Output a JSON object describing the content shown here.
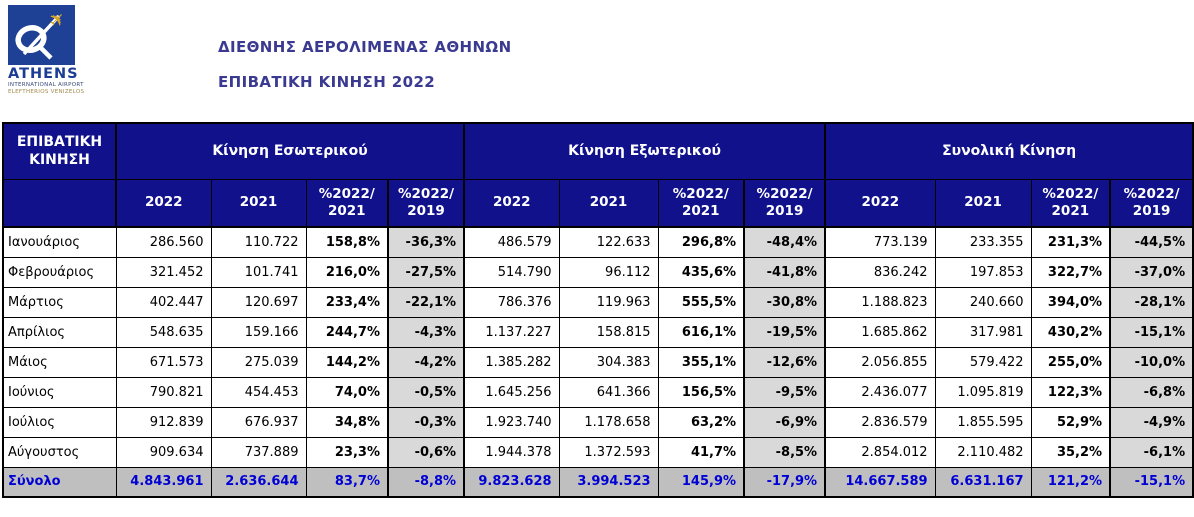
{
  "logo": {
    "name": "ATHENS",
    "sub1": "INTERNATIONAL AIRPORT",
    "sub2": "ELEFTHERIOS VENIZELOS",
    "square_color": "#1E4196",
    "plane_color": "#D8A62A"
  },
  "title": {
    "line1": "ΔΙΕΘΝΗΣ ΑΕΡΟΛΙΜΕΝΑΣ ΑΘΗΝΩΝ",
    "line2": "ΕΠΙΒΑΤΙΚΗ ΚΙΝΗΣΗ 2022"
  },
  "colors": {
    "header_navy": "#11118C",
    "title_indigo": "#3B3A91",
    "vs2019_column_gray": "#D9D9D9",
    "total_row_gray": "#BFBFBF",
    "total_row_text_blue": "#0000D4"
  },
  "table": {
    "corner": "ΕΠΙΒΑΤΙΚΗ ΚΙΝΗΣΗ",
    "groups": [
      "Κίνηση Εσωτερικού",
      "Κίνηση Εξωτερικού",
      "Συνολική Κίνηση"
    ],
    "subheaders": [
      {
        "line1": "2022",
        "line2": ""
      },
      {
        "line1": "2021",
        "line2": ""
      },
      {
        "line1": "%2022/",
        "line2": "2021"
      },
      {
        "line1": "%2022/",
        "line2": "2019"
      }
    ],
    "rows": [
      {
        "month": "Ιανουάριος",
        "domestic": [
          "286.560",
          "110.722",
          "158,8%",
          "-36,3%"
        ],
        "international": [
          "486.579",
          "122.633",
          "296,8%",
          "-48,4%"
        ],
        "total": [
          "773.139",
          "233.355",
          "231,3%",
          "-44,5%"
        ]
      },
      {
        "month": "Φεβρουάριος",
        "domestic": [
          "321.452",
          "101.741",
          "216,0%",
          "-27,5%"
        ],
        "international": [
          "514.790",
          "96.112",
          "435,6%",
          "-41,8%"
        ],
        "total": [
          "836.242",
          "197.853",
          "322,7%",
          "-37,0%"
        ]
      },
      {
        "month": "Μάρτιος",
        "domestic": [
          "402.447",
          "120.697",
          "233,4%",
          "-22,1%"
        ],
        "international": [
          "786.376",
          "119.963",
          "555,5%",
          "-30,8%"
        ],
        "total": [
          "1.188.823",
          "240.660",
          "394,0%",
          "-28,1%"
        ]
      },
      {
        "month": "Απρίλιος",
        "domestic": [
          "548.635",
          "159.166",
          "244,7%",
          "-4,3%"
        ],
        "international": [
          "1.137.227",
          "158.815",
          "616,1%",
          "-19,5%"
        ],
        "total": [
          "1.685.862",
          "317.981",
          "430,2%",
          "-15,1%"
        ]
      },
      {
        "month": "Μάιος",
        "domestic": [
          "671.573",
          "275.039",
          "144,2%",
          "-4,2%"
        ],
        "international": [
          "1.385.282",
          "304.383",
          "355,1%",
          "-12,6%"
        ],
        "total": [
          "2.056.855",
          "579.422",
          "255,0%",
          "-10,0%"
        ]
      },
      {
        "month": "Ιούνιος",
        "domestic": [
          "790.821",
          "454.453",
          "74,0%",
          "-0,5%"
        ],
        "international": [
          "1.645.256",
          "641.366",
          "156,5%",
          "-9,5%"
        ],
        "total": [
          "2.436.077",
          "1.095.819",
          "122,3%",
          "-6,8%"
        ]
      },
      {
        "month": "Ιούλιος",
        "domestic": [
          "912.839",
          "676.937",
          "34,8%",
          "-0,3%"
        ],
        "international": [
          "1.923.740",
          "1.178.658",
          "63,2%",
          "-6,9%"
        ],
        "total": [
          "2.836.579",
          "1.855.595",
          "52,9%",
          "-4,9%"
        ]
      },
      {
        "month": "Αύγουστος",
        "domestic": [
          "909.634",
          "737.889",
          "23,3%",
          "-0,6%"
        ],
        "international": [
          "1.944.378",
          "1.372.593",
          "41,7%",
          "-8,5%"
        ],
        "total": [
          "2.854.012",
          "2.110.482",
          "35,2%",
          "-6,1%"
        ]
      },
      {
        "month": "Σύνολο",
        "is_total": true,
        "domestic": [
          "4.843.961",
          "2.636.644",
          "83,7%",
          "-8,8%"
        ],
        "international": [
          "9.823.628",
          "3.994.523",
          "145,9%",
          "-17,9%"
        ],
        "total": [
          "14.667.589",
          "6.631.167",
          "121,2%",
          "-15,1%"
        ]
      }
    ]
  }
}
